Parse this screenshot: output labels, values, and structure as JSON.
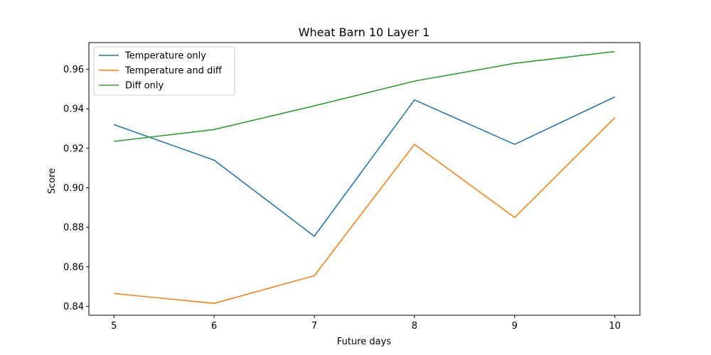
{
  "chart_data": {
    "type": "line",
    "title": "Wheat Barn 10 Layer 1",
    "xlabel": "Future days",
    "ylabel": "Score",
    "x": [
      5,
      6,
      7,
      8,
      9,
      10
    ],
    "xlim": [
      4.75,
      10.25
    ],
    "ylim": [
      0.8355,
      0.9735
    ],
    "xticks": [
      "5",
      "6",
      "7",
      "8",
      "9",
      "10"
    ],
    "yticks": [
      "0.84",
      "0.86",
      "0.88",
      "0.90",
      "0.92",
      "0.94",
      "0.96"
    ],
    "legend_position": "top-left",
    "grid": false,
    "series": [
      {
        "name": "Temperature only",
        "color": "#1f77b4",
        "values": [
          0.932,
          0.914,
          0.8755,
          0.9445,
          0.922,
          0.946
        ]
      },
      {
        "name": "Temperature and diff",
        "color": "#ff7f0e",
        "values": [
          0.8465,
          0.8415,
          0.8555,
          0.922,
          0.885,
          0.9355
        ]
      },
      {
        "name": "Diff only",
        "color": "#2ca02c",
        "values": [
          0.9235,
          0.9295,
          0.9415,
          0.954,
          0.963,
          0.969
        ]
      }
    ]
  }
}
